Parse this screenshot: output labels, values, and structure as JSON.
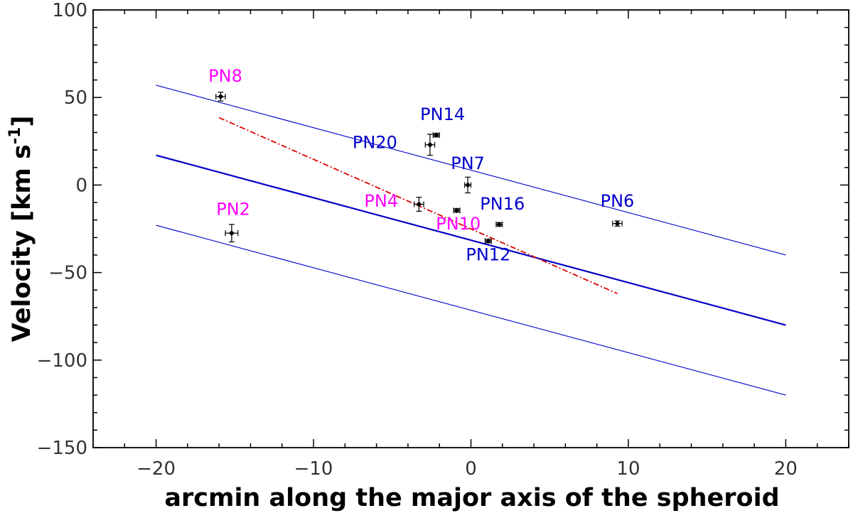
{
  "chart_data": {
    "type": "scatter",
    "title": "",
    "xlabel": "arcmin along the major axis of the spheroid",
    "ylabel": {
      "prefix": "Velocity [km s",
      "superscript": "-1",
      "suffix": "]"
    },
    "xlim": [
      -24,
      24
    ],
    "ylim": [
      -150,
      100
    ],
    "xticks": [
      -20,
      -10,
      0,
      10,
      20
    ],
    "xtick_labels": [
      "−20",
      "−10",
      "0",
      "10",
      "20"
    ],
    "yticks": [
      -150,
      -100,
      -50,
      0,
      50,
      100
    ],
    "ytick_labels": [
      "−150",
      "−100",
      "−50",
      "0",
      "50",
      "100"
    ],
    "grid": false,
    "points": [
      {
        "label": "PN8",
        "x": -15.9,
        "y": 50.5,
        "xerr": 0.3,
        "yerr": 2.5,
        "label_color": "#ff00ff",
        "label_x": -15.6,
        "label_y": 59
      },
      {
        "label": "PN2",
        "x": -15.2,
        "y": -27.5,
        "xerr": 0.4,
        "yerr": 5.0,
        "label_color": "#ff00ff",
        "label_x": -15.1,
        "label_y": -17
      },
      {
        "label": "PN14",
        "x": -2.2,
        "y": 28.5,
        "xerr": 0.2,
        "yerr": 1.0,
        "label_color": "#0000cc",
        "label_x": -1.8,
        "label_y": 37
      },
      {
        "label": "PN20",
        "x": -2.6,
        "y": 23.0,
        "xerr": 0.3,
        "yerr": 6.0,
        "label_color": "#0000cc",
        "label_x": -6.1,
        "label_y": 21
      },
      {
        "label": "PN7",
        "x": -0.2,
        "y": 0.0,
        "xerr": 0.2,
        "yerr": 4.5,
        "label_color": "#0000cc",
        "label_x": -0.2,
        "label_y": 9
      },
      {
        "label": "PN4",
        "x": -3.3,
        "y": -11.0,
        "xerr": 0.3,
        "yerr": 4.0,
        "label_color": "#ff00ff",
        "label_x": -5.7,
        "label_y": -12.5
      },
      {
        "label": "PN16",
        "x": 1.8,
        "y": -22.5,
        "xerr": 0.2,
        "yerr": 1.0,
        "label_color": "#0000cc",
        "label_x": 2.0,
        "label_y": -14
      },
      {
        "label": "PN10",
        "x": -0.9,
        "y": -14.5,
        "xerr": 0.2,
        "yerr": 1.0,
        "label_color": "#ff00ff",
        "label_x": -0.8,
        "label_y": -25.5
      },
      {
        "label": "PN12",
        "x": 1.1,
        "y": -32.0,
        "xerr": 0.2,
        "yerr": 1.0,
        "label_color": "#0000cc",
        "label_x": 1.1,
        "label_y": -43
      },
      {
        "label": "PN6",
        "x": 9.3,
        "y": -22.0,
        "xerr": 0.3,
        "yerr": 1.5,
        "label_color": "#0000cc",
        "label_x": 9.3,
        "label_y": -12.5
      }
    ],
    "lines": [
      {
        "x": [
          -20,
          20
        ],
        "y": [
          17.0,
          -80.0
        ],
        "color": "#0000cc",
        "width": 2.2,
        "dash": ""
      },
      {
        "x": [
          -20,
          20
        ],
        "y": [
          57.0,
          -40.0
        ],
        "color": "#0000cc",
        "width": 1.1,
        "dash": ""
      },
      {
        "x": [
          -20,
          20
        ],
        "y": [
          -23.0,
          -120.0
        ],
        "color": "#0000cc",
        "width": 1.1,
        "dash": ""
      },
      {
        "x": [
          -16,
          9.3
        ],
        "y": [
          38.5,
          -62.0
        ],
        "color": "#dd0000",
        "width": 1.8,
        "dash": "8,3,2,3"
      }
    ]
  }
}
